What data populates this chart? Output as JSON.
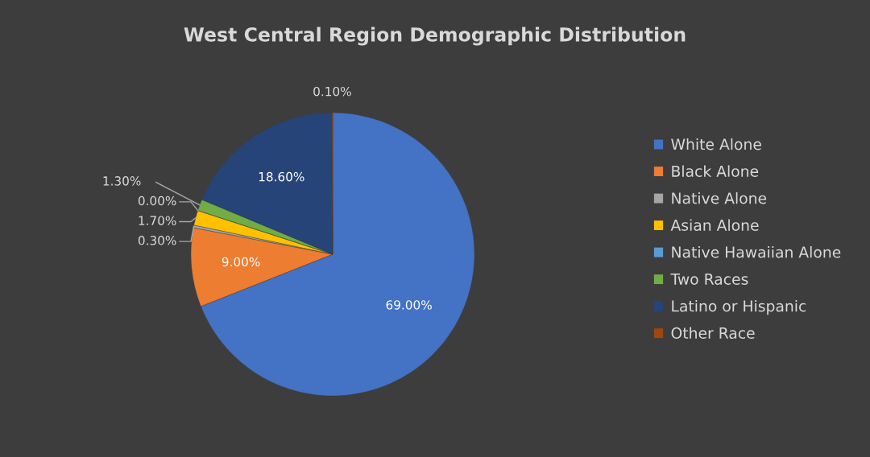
{
  "chart_data": {
    "type": "pie",
    "title": "West Central Region Demographic Distribution",
    "categories": [
      "White Alone",
      "Black Alone",
      "Native Alone",
      "Asian Alone",
      "Native Hawaiian Alone",
      "Two Races",
      "Latino or Hispanic",
      "Other Race"
    ],
    "values": [
      69.0,
      9.0,
      0.3,
      1.7,
      0.0,
      1.3,
      18.6,
      0.1
    ],
    "colors": [
      "#4472c4",
      "#ed7d31",
      "#a5a5a5",
      "#ffc000",
      "#5b9bd5",
      "#70ad47",
      "#264478",
      "#9e480e"
    ],
    "value_labels": [
      "69.00%",
      "9.00%",
      "0.30%",
      "1.70%",
      "0.00%",
      "1.30%",
      "18.60%",
      "0.10%"
    ],
    "legend": "right"
  }
}
